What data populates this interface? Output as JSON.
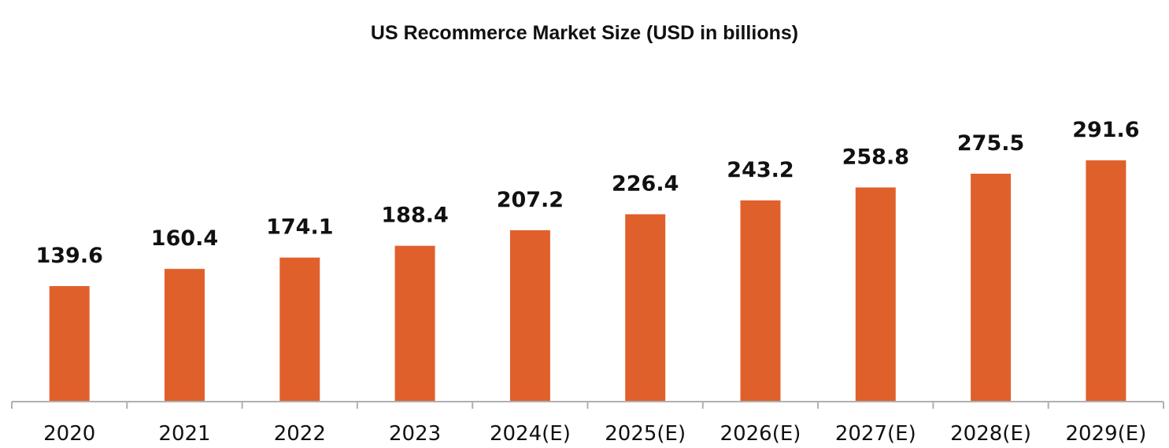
{
  "chart_data": {
    "type": "bar",
    "title": "US Recommerce Market Size (USD in billions)",
    "xlabel": "",
    "ylabel": "",
    "categories": [
      "2020",
      "2021",
      "2022",
      "2023",
      "2024(E)",
      "2025(E)",
      "2026(E)",
      "2027(E)",
      "2028(E)",
      "2029(E)"
    ],
    "values": [
      139.6,
      160.4,
      174.1,
      188.4,
      207.2,
      226.4,
      243.2,
      258.8,
      275.5,
      291.6
    ],
    "data_labels": [
      "139.6",
      "160.4",
      "174.1",
      "188.4",
      "207.2",
      "226.4",
      "243.2",
      "258.8",
      "275.5",
      "291.6"
    ],
    "ylim": [
      0,
      291.6
    ],
    "grid": false,
    "legend": "none",
    "colors": {
      "bar": "#E0602C",
      "axis": "#B0B0B0"
    }
  }
}
